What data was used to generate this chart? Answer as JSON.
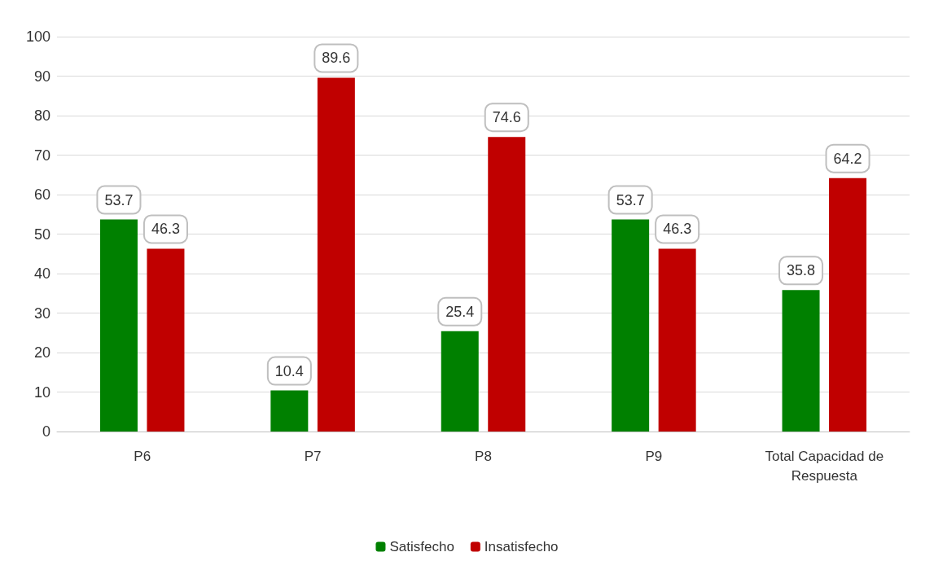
{
  "chart_data": {
    "type": "bar",
    "categories": [
      "P6",
      "P7",
      "P8",
      "P9",
      "Total Capacidad de\nRespuesta"
    ],
    "series": [
      {
        "name": "Satisfecho",
        "color": "#008000",
        "values": [
          53.7,
          10.4,
          25.4,
          53.7,
          35.8
        ]
      },
      {
        "name": "Insatisfecho",
        "color": "#c00000",
        "values": [
          46.3,
          89.6,
          74.6,
          46.3,
          64.2
        ]
      }
    ],
    "ylim": [
      0,
      100
    ],
    "yticks": [
      0,
      10,
      20,
      30,
      40,
      50,
      60,
      70,
      80,
      90,
      100
    ],
    "grid": "y",
    "legend": "bottom",
    "data_labels": true
  }
}
